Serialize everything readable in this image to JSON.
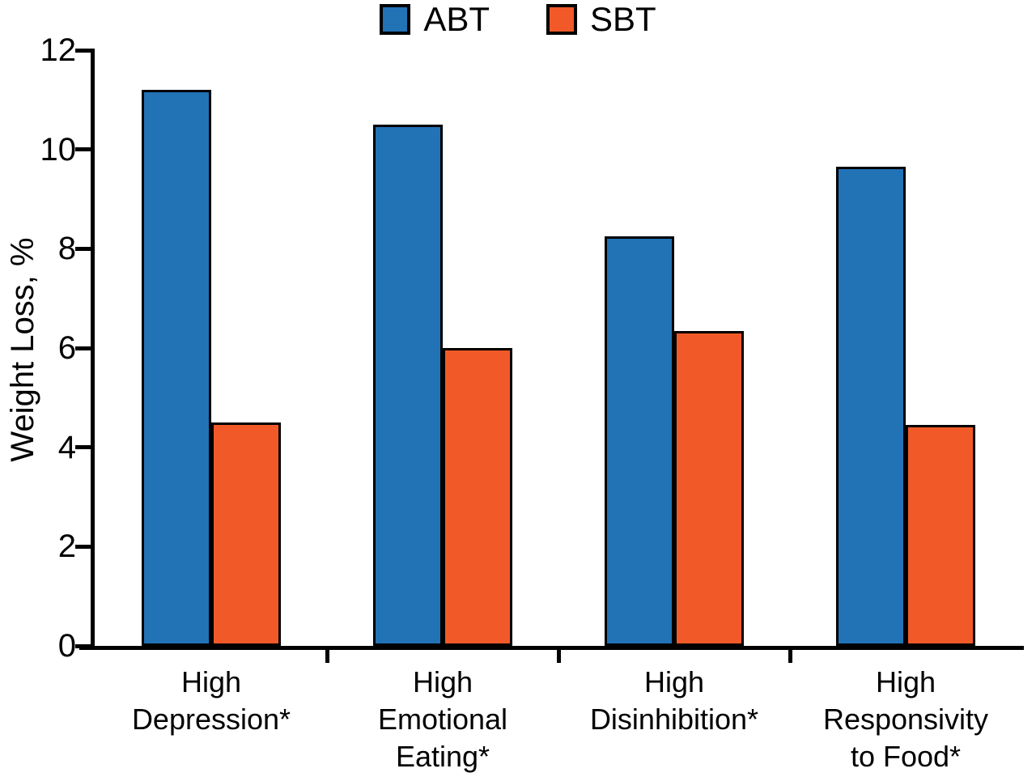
{
  "chart_data": {
    "type": "bar",
    "title": "",
    "xlabel": "",
    "ylabel": "Weight Loss, %",
    "ylim": [
      0,
      12
    ],
    "yticks": [
      0,
      2,
      4,
      6,
      8,
      10,
      12
    ],
    "grid": false,
    "legend_position": "top",
    "bar_border_color": "#000000",
    "categories": [
      "High\nDepression*",
      "High\nEmotional\nEating*",
      "High\nDisinhibition*",
      "High\nResponsivity\nto Food*"
    ],
    "series": [
      {
        "name": "ABT",
        "color": "#2272B6",
        "values": [
          11.2,
          10.5,
          8.25,
          9.65
        ]
      },
      {
        "name": "SBT",
        "color": "#F15A28",
        "values": [
          4.5,
          6.0,
          6.35,
          4.45
        ]
      }
    ]
  }
}
